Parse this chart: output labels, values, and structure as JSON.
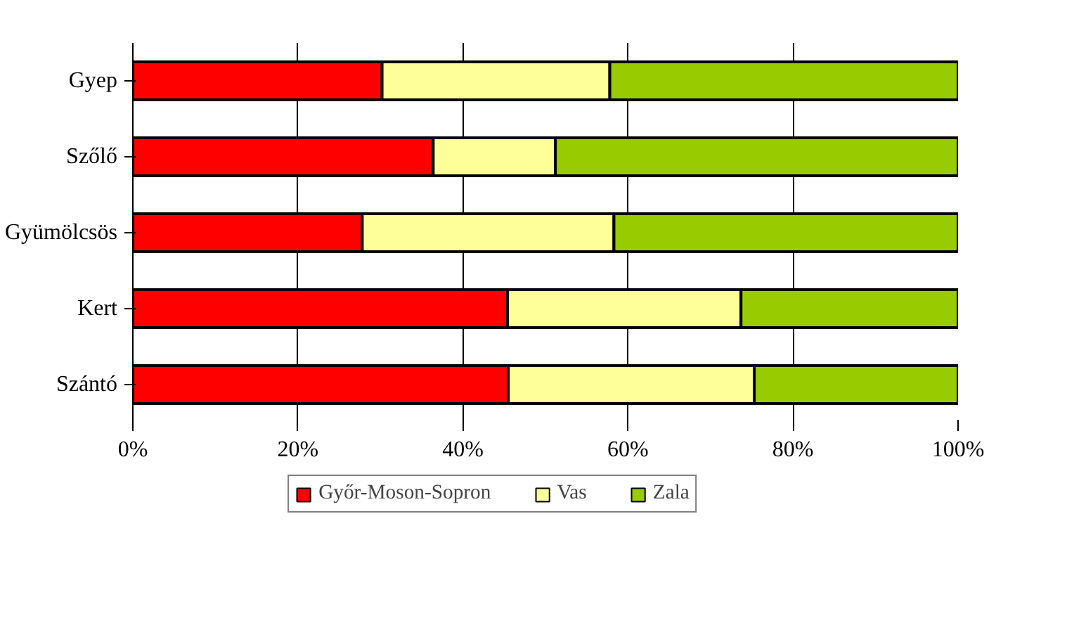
{
  "chart_data": {
    "type": "bar",
    "orientation": "horizontal",
    "stacked": true,
    "categories": [
      "Gyep",
      "Szőlő",
      "Gyümölcsös",
      "Kert",
      "Szántó"
    ],
    "series": [
      {
        "name": "Győr-Moson-Sopron",
        "color": "#ff0000",
        "values": [
          30.2,
          36.4,
          27.8,
          45.4,
          45.5
        ]
      },
      {
        "name": "Vas",
        "color": "#ffff99",
        "values": [
          27.6,
          14.8,
          30.5,
          28.3,
          29.8
        ]
      },
      {
        "name": "Zala",
        "color": "#99cc00",
        "values": [
          42.2,
          48.8,
          41.7,
          26.3,
          24.7
        ]
      }
    ],
    "xlim": [
      0,
      100
    ],
    "xticks": [
      {
        "value": 0,
        "label": "0%"
      },
      {
        "value": 20,
        "label": "20%"
      },
      {
        "value": 40,
        "label": "40%"
      },
      {
        "value": 60,
        "label": "60%"
      },
      {
        "value": 80,
        "label": "80%"
      },
      {
        "value": 100,
        "label": "100%"
      }
    ],
    "grid": "x",
    "legend": "bottom"
  }
}
